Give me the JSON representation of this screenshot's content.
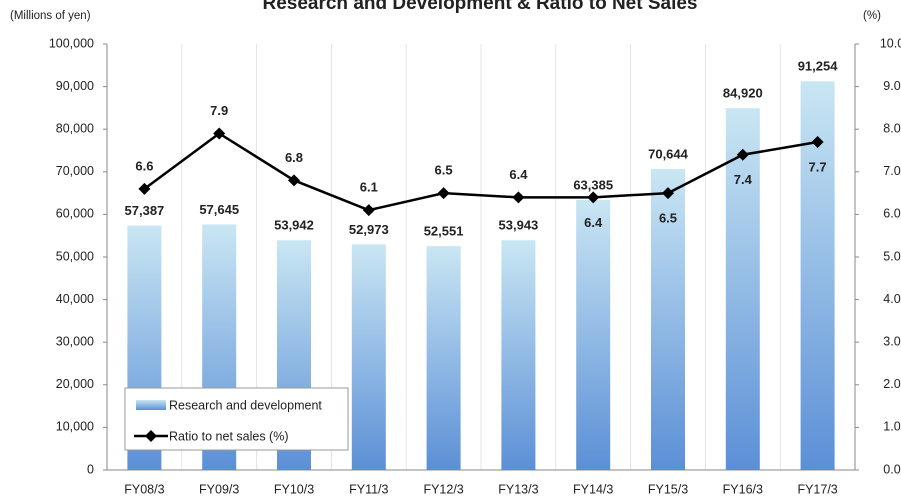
{
  "chart_data": {
    "type": "bar+line",
    "title": "Research and Development & Ratio to Net Sales",
    "y_label": "(Millions of yen)",
    "y2_label": "(%)",
    "categories": [
      "FY08/3",
      "FY09/3",
      "FY10/3",
      "FY11/3",
      "FY12/3",
      "FY13/3",
      "FY14/3",
      "FY15/3",
      "FY16/3",
      "FY17/3"
    ],
    "series": [
      {
        "name": "Research and development",
        "type": "bar",
        "color": "#5b8fd6",
        "values": [
          57387,
          57645,
          53942,
          52973,
          52551,
          53943,
          63385,
          70644,
          84920,
          91254
        ],
        "value_labels": [
          "57,387",
          "57,645",
          "53,942",
          "52,973",
          "52,551",
          "53,943",
          "63,385",
          "70,644",
          "84,920",
          "91,254"
        ]
      },
      {
        "name": "Ratio to net sales (%)",
        "type": "line",
        "axis": "y2",
        "color": "#000000",
        "values": [
          6.6,
          7.9,
          6.8,
          6.1,
          6.5,
          6.4,
          6.4,
          6.5,
          7.4,
          7.7
        ]
      }
    ],
    "ylim": [
      0,
      100000
    ],
    "yticks": [
      0,
      {
        "value": 10000,
        "label": "10,000"
      },
      {
        "value": 20000,
        "label": "20,000"
      },
      {
        "value": 30000,
        "label": "30,000"
      },
      {
        "value": 40000,
        "label": "40,000"
      },
      {
        "value": 50000,
        "label": "50,000"
      },
      {
        "value": 60000,
        "label": "60,000"
      },
      {
        "value": 70000,
        "label": "70,000"
      },
      {
        "value": 80000,
        "label": "80,000"
      },
      {
        "value": 90000,
        "label": "90,000"
      },
      {
        "value": 100000,
        "label": "100,000"
      }
    ],
    "y2lim": [
      0,
      10
    ],
    "y2ticks": [
      {
        "value": 0,
        "label": "0.0"
      },
      {
        "value": 1,
        "label": "1.0"
      },
      {
        "value": 2,
        "label": "2.0"
      },
      {
        "value": 3,
        "label": "3.0"
      },
      {
        "value": 4,
        "label": "4.0"
      },
      {
        "value": 5,
        "label": "5.0"
      },
      {
        "value": 6,
        "label": "6.0"
      },
      {
        "value": 7,
        "label": "7.0"
      },
      {
        "value": 8,
        "label": "8.0"
      },
      {
        "value": 9,
        "label": "9.0"
      },
      {
        "value": 10,
        "label": "10.0"
      }
    ],
    "legend": "bottom-left"
  }
}
